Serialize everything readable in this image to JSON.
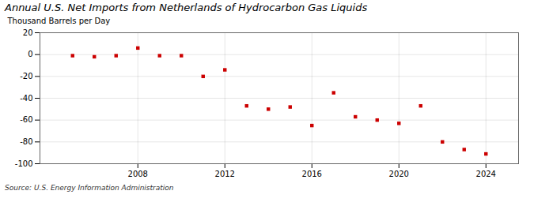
{
  "chart_data": {
    "type": "scatter",
    "title": "Annual U.S. Net Imports from Netherlands of Hydrocarbon Gas Liquids",
    "ylabel": "Thousand Barrels per Day",
    "caption": "Source: U.S. Energy Information Administration",
    "x": [
      2005,
      2006,
      2007,
      2008,
      2009,
      2010,
      2011,
      2012,
      2013,
      2014,
      2015,
      2016,
      2017,
      2018,
      2019,
      2020,
      2021,
      2022,
      2023,
      2024
    ],
    "values": [
      -1,
      -2,
      -1,
      6,
      -1,
      -1,
      -20,
      -14,
      -47,
      -50,
      -48,
      -65,
      -35,
      -57,
      -60,
      -63,
      -47,
      -80,
      -87,
      -91
    ],
    "color": "#cc0000",
    "marker": "square",
    "xlim": [
      2003.5,
      2025.5
    ],
    "ylim": [
      -100,
      20
    ],
    "xticks": [
      2008,
      2012,
      2016,
      2020,
      2024
    ],
    "yticks": [
      -100,
      -80,
      -60,
      -40,
      -20,
      0,
      20
    ],
    "grid": true
  }
}
